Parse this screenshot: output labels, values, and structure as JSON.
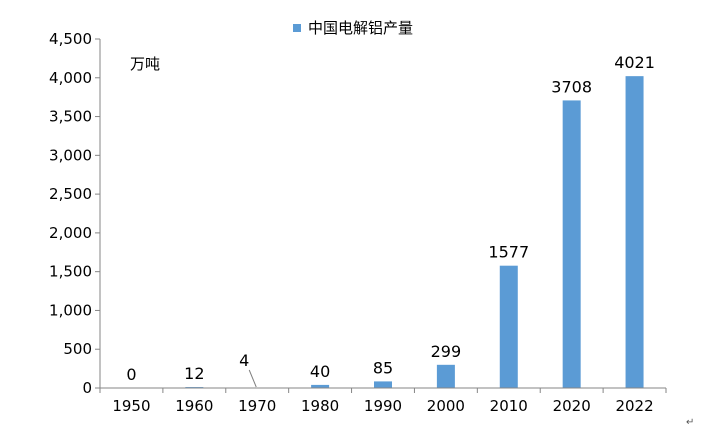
{
  "chart_data": {
    "type": "bar",
    "categories": [
      "1950",
      "1960",
      "1970",
      "1980",
      "1990",
      "2000",
      "2010",
      "2020",
      "2022"
    ],
    "series": [
      {
        "name": "中国电解铝产量",
        "values": [
          0,
          12,
          4,
          40,
          85,
          299,
          1577,
          3708,
          4021
        ]
      }
    ],
    "data_labels": [
      "0",
      "12",
      "4",
      "40",
      "85",
      "299",
      "1577",
      "3708",
      "4021"
    ],
    "unit_label": "万吨",
    "ylim": [
      0,
      4500
    ],
    "y_ticks": [
      0,
      500,
      1000,
      1500,
      2000,
      2500,
      3000,
      3500,
      4000,
      4500
    ],
    "y_tick_labels": [
      "0",
      "500",
      "1,000",
      "1,500",
      "2,000",
      "2,500",
      "3,000",
      "3,500",
      "4,000",
      "4,500"
    ],
    "legend_position": "top-center",
    "grid": false,
    "bar_color": "#5b9bd5",
    "axis_color": "#868686"
  },
  "page_mark": "↵"
}
